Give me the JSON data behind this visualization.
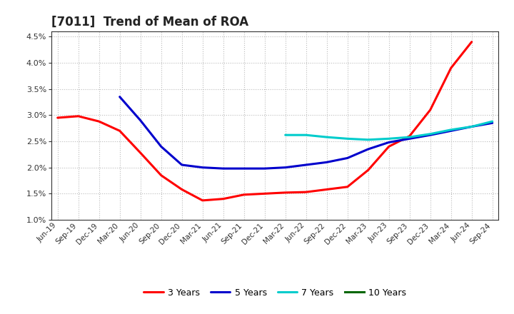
{
  "title": "[7011]  Trend of Mean of ROA",
  "ylim": [
    0.01,
    0.046
  ],
  "yticks": [
    0.01,
    0.015,
    0.02,
    0.025,
    0.03,
    0.035,
    0.04,
    0.045
  ],
  "background_color": "#ffffff",
  "grid_color": "#bbbbbb",
  "series": {
    "3 Years": {
      "color": "#ff0000",
      "data": [
        [
          "Jun-19",
          0.0295
        ],
        [
          "Sep-19",
          0.0298
        ],
        [
          "Dec-19",
          0.0288
        ],
        [
          "Mar-20",
          0.027
        ],
        [
          "Jun-20",
          0.0228
        ],
        [
          "Sep-20",
          0.0185
        ],
        [
          "Dec-20",
          0.0158
        ],
        [
          "Mar-21",
          0.0137
        ],
        [
          "Jun-21",
          0.014
        ],
        [
          "Sep-21",
          0.0148
        ],
        [
          "Dec-21",
          0.015
        ],
        [
          "Mar-22",
          0.0152
        ],
        [
          "Jun-22",
          0.0153
        ],
        [
          "Sep-22",
          0.0158
        ],
        [
          "Dec-22",
          0.0163
        ],
        [
          "Mar-23",
          0.0195
        ],
        [
          "Jun-23",
          0.024
        ],
        [
          "Sep-23",
          0.026
        ],
        [
          "Dec-23",
          0.031
        ],
        [
          "Mar-24",
          0.039
        ],
        [
          "Jun-24",
          0.044
        ],
        [
          "Sep-24",
          null
        ]
      ]
    },
    "5 Years": {
      "color": "#0000cc",
      "data": [
        [
          "Jun-19",
          null
        ],
        [
          "Sep-19",
          null
        ],
        [
          "Dec-19",
          null
        ],
        [
          "Mar-20",
          0.0335
        ],
        [
          "Jun-20",
          0.029
        ],
        [
          "Sep-20",
          0.024
        ],
        [
          "Dec-20",
          0.0205
        ],
        [
          "Mar-21",
          0.02
        ],
        [
          "Jun-21",
          0.0198
        ],
        [
          "Sep-21",
          0.0198
        ],
        [
          "Dec-21",
          0.0198
        ],
        [
          "Mar-22",
          0.02
        ],
        [
          "Jun-22",
          0.0205
        ],
        [
          "Sep-22",
          0.021
        ],
        [
          "Dec-22",
          0.0218
        ],
        [
          "Mar-23",
          0.0235
        ],
        [
          "Jun-23",
          0.0248
        ],
        [
          "Sep-23",
          0.0255
        ],
        [
          "Dec-23",
          0.0262
        ],
        [
          "Mar-24",
          0.027
        ],
        [
          "Jun-24",
          0.0278
        ],
        [
          "Sep-24",
          0.0285
        ]
      ]
    },
    "7 Years": {
      "color": "#00cccc",
      "data": [
        [
          "Jun-19",
          null
        ],
        [
          "Sep-19",
          null
        ],
        [
          "Dec-19",
          null
        ],
        [
          "Mar-20",
          null
        ],
        [
          "Jun-20",
          null
        ],
        [
          "Sep-20",
          null
        ],
        [
          "Dec-20",
          null
        ],
        [
          "Mar-21",
          null
        ],
        [
          "Jun-21",
          null
        ],
        [
          "Sep-21",
          null
        ],
        [
          "Dec-21",
          null
        ],
        [
          "Mar-22",
          0.0262
        ],
        [
          "Jun-22",
          0.0262
        ],
        [
          "Sep-22",
          0.0258
        ],
        [
          "Dec-22",
          0.0255
        ],
        [
          "Mar-23",
          0.0253
        ],
        [
          "Jun-23",
          0.0255
        ],
        [
          "Sep-23",
          0.0258
        ],
        [
          "Dec-23",
          0.0264
        ],
        [
          "Mar-24",
          0.0272
        ],
        [
          "Jun-24",
          0.0278
        ],
        [
          "Sep-24",
          0.0288
        ]
      ]
    },
    "10 Years": {
      "color": "#006600",
      "data": [
        [
          "Jun-19",
          null
        ],
        [
          "Sep-19",
          null
        ],
        [
          "Dec-19",
          null
        ],
        [
          "Mar-20",
          null
        ],
        [
          "Jun-20",
          null
        ],
        [
          "Sep-20",
          null
        ],
        [
          "Dec-20",
          null
        ],
        [
          "Mar-21",
          null
        ],
        [
          "Jun-21",
          null
        ],
        [
          "Sep-21",
          null
        ],
        [
          "Dec-21",
          null
        ],
        [
          "Mar-22",
          null
        ],
        [
          "Jun-22",
          null
        ],
        [
          "Sep-22",
          null
        ],
        [
          "Dec-22",
          null
        ],
        [
          "Mar-23",
          null
        ],
        [
          "Jun-23",
          null
        ],
        [
          "Sep-23",
          null
        ],
        [
          "Dec-23",
          null
        ],
        [
          "Mar-24",
          null
        ],
        [
          "Jun-24",
          null
        ],
        [
          "Sep-24",
          null
        ]
      ]
    }
  },
  "x_labels": [
    "Jun-19",
    "Sep-19",
    "Dec-19",
    "Mar-20",
    "Jun-20",
    "Sep-20",
    "Dec-20",
    "Mar-21",
    "Jun-21",
    "Sep-21",
    "Dec-21",
    "Mar-22",
    "Jun-22",
    "Sep-22",
    "Dec-22",
    "Mar-23",
    "Jun-23",
    "Sep-23",
    "Dec-23",
    "Mar-24",
    "Jun-24",
    "Sep-24"
  ]
}
